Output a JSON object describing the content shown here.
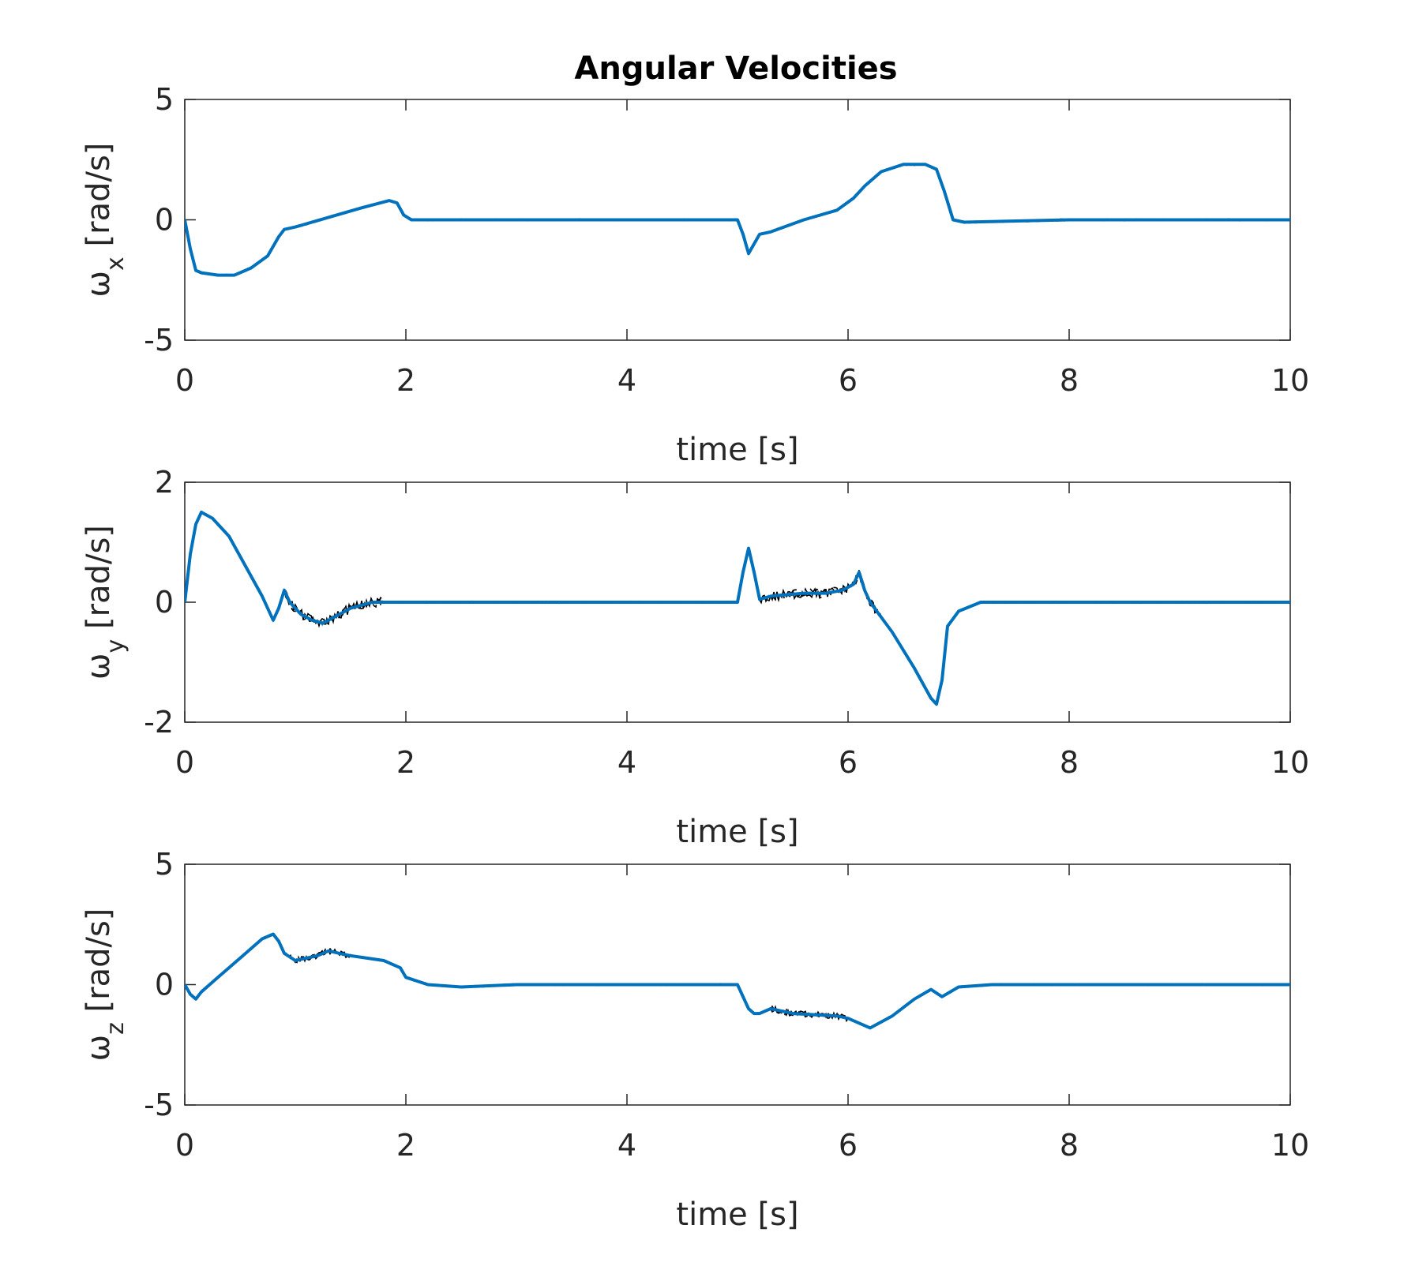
{
  "figure": {
    "title": "Angular Velocities"
  },
  "colors": {
    "estimate": "#0072BD",
    "measured": "#000000",
    "axes": "#262626"
  },
  "chart_data": [
    {
      "type": "line",
      "title": "Angular Velocities",
      "ylabel_symbol": "ω",
      "ylabel_sub": "x",
      "ylabel_unit": "[rad/s]",
      "xlabel": "time [s]",
      "xlim": [
        0,
        10
      ],
      "ylim": [
        -5,
        5
      ],
      "xticks": [
        0,
        2,
        4,
        6,
        8,
        10
      ],
      "yticks": [
        -5,
        0,
        5
      ],
      "grid": false,
      "series": [
        {
          "style": "solid",
          "x": [
            0,
            0.05,
            0.1,
            0.15,
            0.3,
            0.45,
            0.6,
            0.75,
            0.85,
            0.9,
            1.0,
            1.3,
            1.6,
            1.85,
            1.92,
            1.98,
            2.05,
            3,
            4,
            5,
            5.05,
            5.1,
            5.15,
            5.2,
            5.3,
            5.6,
            5.9,
            6.05,
            6.15,
            6.3,
            6.5,
            6.7,
            6.8,
            6.87,
            6.95,
            7.05,
            8,
            9,
            10
          ],
          "y": [
            0,
            -1.2,
            -2.1,
            -2.2,
            -2.3,
            -2.3,
            -2.0,
            -1.5,
            -0.7,
            -0.4,
            -0.3,
            0.1,
            0.5,
            0.8,
            0.7,
            0.2,
            0,
            0,
            0,
            0,
            -0.6,
            -1.4,
            -1.0,
            -0.6,
            -0.5,
            0,
            0.4,
            0.9,
            1.4,
            2.0,
            2.3,
            2.3,
            2.1,
            1.2,
            0.0,
            -0.1,
            0,
            0,
            0
          ]
        }
      ]
    },
    {
      "type": "line",
      "ylabel_symbol": "ω",
      "ylabel_sub": "y",
      "ylabel_unit": "[rad/s]",
      "xlabel": "time [s]",
      "xlim": [
        0,
        10
      ],
      "ylim": [
        -2,
        2
      ],
      "xticks": [
        0,
        2,
        4,
        6,
        8,
        10
      ],
      "yticks": [
        -2,
        0,
        2
      ],
      "grid": false,
      "series": [
        {
          "style": "solid",
          "x": [
            0,
            0.05,
            0.1,
            0.15,
            0.25,
            0.4,
            0.55,
            0.7,
            0.8,
            0.85,
            0.9,
            0.95,
            1.05,
            1.15,
            1.25,
            1.3,
            1.4,
            1.5,
            1.7,
            1.9,
            2,
            3,
            4,
            5,
            5.05,
            5.1,
            5.15,
            5.2,
            5.3,
            5.6,
            5.8,
            5.95,
            6.05,
            6.1,
            6.15,
            6.2,
            6.4,
            6.6,
            6.75,
            6.8,
            6.85,
            6.9,
            7.0,
            7.2,
            8,
            9,
            10
          ],
          "y": [
            0,
            0.8,
            1.3,
            1.5,
            1.4,
            1.1,
            0.6,
            0.1,
            -0.3,
            -0.1,
            0.2,
            0.0,
            -0.2,
            -0.3,
            -0.35,
            -0.3,
            -0.2,
            -0.1,
            0.0,
            0.0,
            0,
            0,
            0,
            0,
            0.5,
            0.9,
            0.5,
            0.05,
            0.1,
            0.15,
            0.15,
            0.2,
            0.3,
            0.5,
            0.2,
            0.0,
            -0.5,
            -1.1,
            -1.6,
            -1.7,
            -1.3,
            -0.4,
            -0.15,
            0,
            0,
            0,
            0
          ]
        }
      ]
    },
    {
      "type": "line",
      "ylabel_symbol": "ω",
      "ylabel_sub": "z",
      "ylabel_unit": "[rad/s]",
      "xlabel": "time [s]",
      "xlim": [
        0,
        10
      ],
      "ylim": [
        -5,
        5
      ],
      "xticks": [
        0,
        2,
        4,
        6,
        8,
        10
      ],
      "yticks": [
        -5,
        0,
        5
      ],
      "grid": false,
      "series": [
        {
          "style": "solid",
          "x": [
            0,
            0.05,
            0.1,
            0.15,
            0.3,
            0.5,
            0.7,
            0.8,
            0.85,
            0.9,
            1.0,
            1.2,
            1.3,
            1.5,
            1.8,
            1.95,
            2.0,
            2.2,
            2.5,
            3,
            4,
            5,
            5.05,
            5.1,
            5.15,
            5.2,
            5.3,
            5.5,
            5.9,
            6.0,
            6.1,
            6.2,
            6.4,
            6.6,
            6.75,
            6.85,
            7.0,
            7.3,
            8,
            9,
            10
          ],
          "y": [
            0,
            -0.4,
            -0.6,
            -0.3,
            0.3,
            1.1,
            1.9,
            2.1,
            1.8,
            1.3,
            1.0,
            1.2,
            1.4,
            1.2,
            1.0,
            0.7,
            0.3,
            0.0,
            -0.1,
            0,
            0,
            0,
            -0.5,
            -1.0,
            -1.2,
            -1.2,
            -1.0,
            -1.2,
            -1.3,
            -1.4,
            -1.6,
            -1.8,
            -1.3,
            -0.6,
            -0.2,
            -0.5,
            -0.1,
            0,
            0,
            0,
            0
          ]
        }
      ]
    }
  ]
}
